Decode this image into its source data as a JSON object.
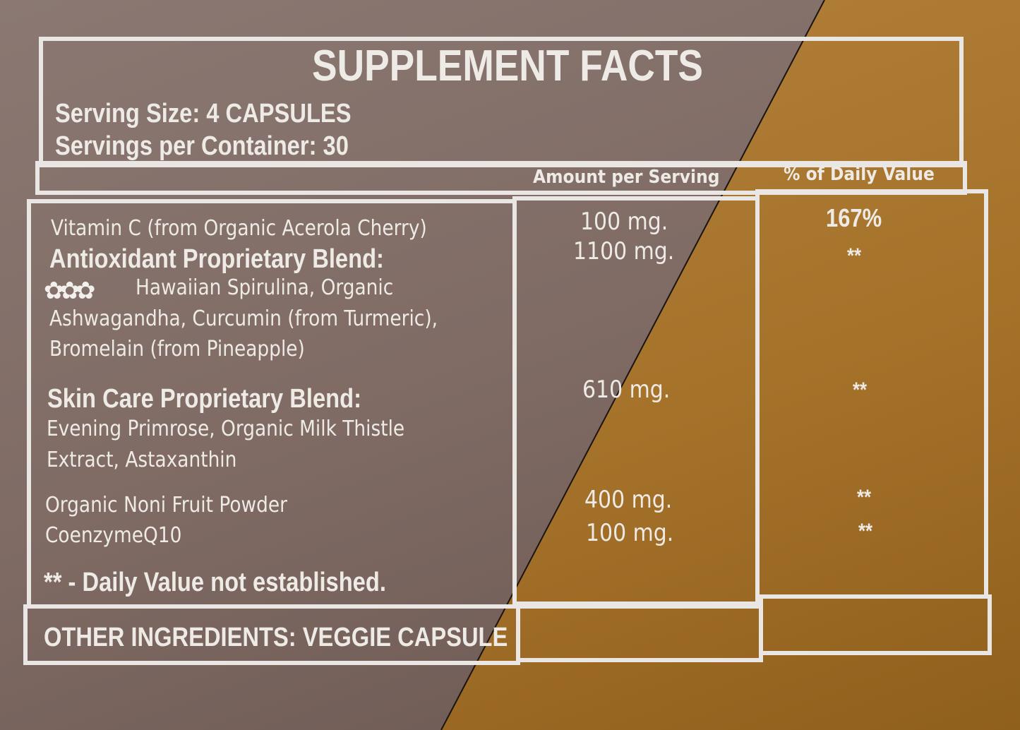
{
  "title": "SUPPLEMENT FACTS",
  "serving_size": "Serving Size: 4 CAPSULES",
  "servings_per_container": "Servings per Container: 30",
  "headers": {
    "amount": "Amount per Serving",
    "dv": "% of Daily Value"
  },
  "rows": [
    {
      "name": "Vitamin C (from Organic Acerola Cherry)",
      "amount": "100 mg.",
      "dv": "167%"
    },
    {
      "name": "Antioxidant Proprietary Blend:",
      "amount": "1100 mg.",
      "dv": "**",
      "ingredients": [
        "Hawaiian Spirulina, Organic",
        "Ashwagandha, Curcumin (from Turmeric),",
        "Bromelain (from Pineapple)"
      ]
    },
    {
      "name": "Skin Care Proprietary Blend:",
      "amount": "610 mg.",
      "dv": "**",
      "ingredients": [
        "Evening Primrose, Organic Milk Thistle",
        "Extract, Astaxanthin"
      ]
    },
    {
      "name": "Organic Noni Fruit Powder",
      "amount": "400 mg.",
      "dv": "**"
    },
    {
      "name": "CoenzymeQ10",
      "amount": "100 mg.",
      "dv": "**"
    }
  ],
  "footnote": "** - Daily Value not established.",
  "other_ingredients": "OTHER INGREDIENTS: VEGGIE CAPSULE",
  "icons": {
    "hibiscus": "hibiscus-flower-icon"
  },
  "colors": {
    "left_panel": "#7f6b64",
    "right_panel": "#b07f34",
    "text": "#eeeae6"
  }
}
